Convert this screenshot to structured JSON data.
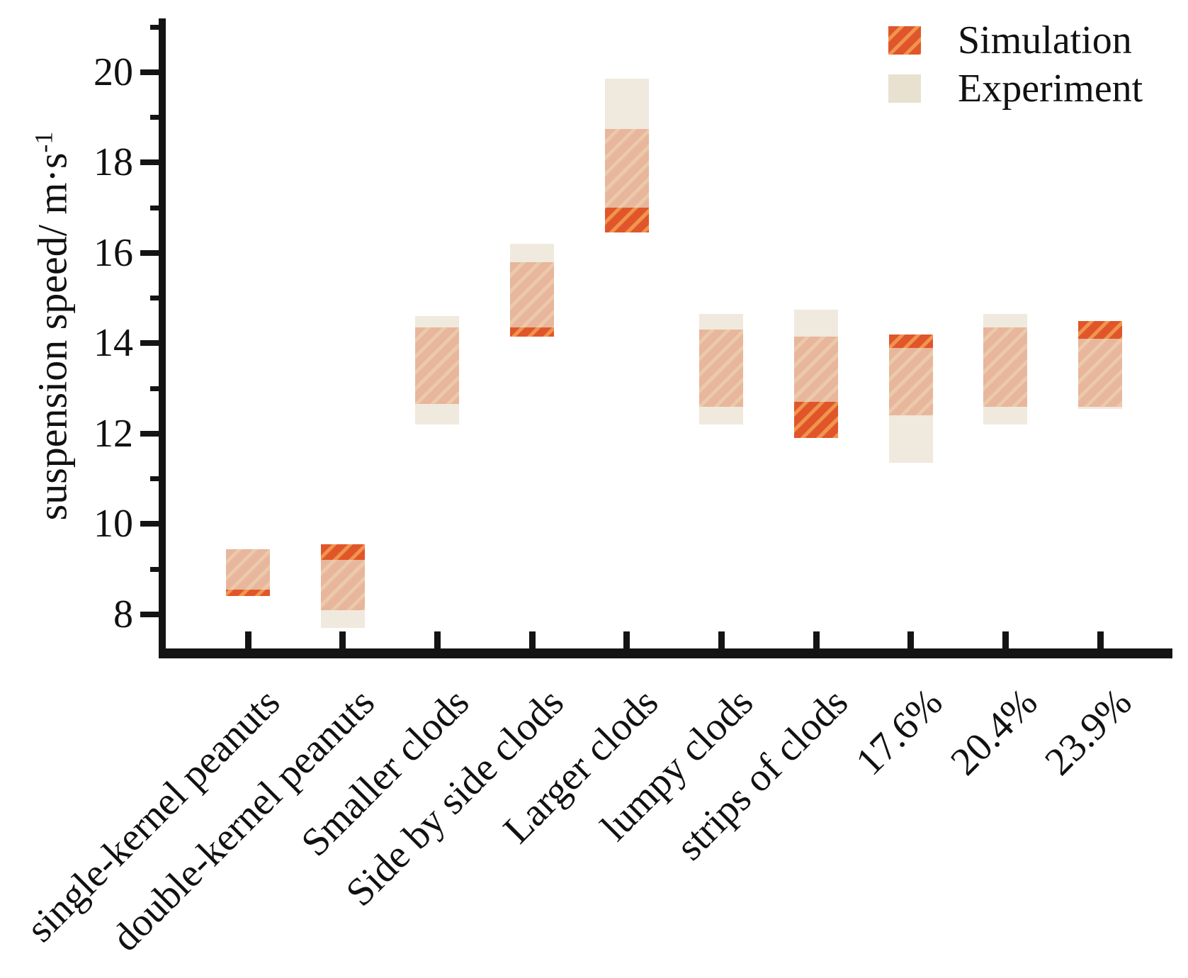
{
  "legend": {
    "items": [
      {
        "label": "Simulation"
      },
      {
        "label": "Experiment"
      }
    ]
  },
  "axes": {
    "ylabel_base": "suspension speed/ m·s",
    "ylabel_sup": "-1"
  },
  "chart_data": {
    "type": "bar",
    "subtype": "floating-range-bars",
    "title": "",
    "xlabel": "",
    "ylabel": "suspension speed/ m·s⁻¹",
    "ylim": [
      7.25,
      21.2
    ],
    "yticks": [
      8,
      10,
      12,
      14,
      16,
      18,
      20
    ],
    "yticks_minor": [
      9,
      11,
      13,
      15,
      17,
      19,
      21
    ],
    "grid": false,
    "legend_position": "top-right",
    "categories": [
      "single-kernel peanuts",
      "double-kernel peanuts",
      "Smaller clods",
      "Side by side clods",
      "Larger clods",
      "lumpy clods",
      "strips of clods",
      "17.6%",
      "20.4%",
      "23.9%"
    ],
    "series": [
      {
        "name": "Simulation",
        "style": "orange-diagonal-hatch",
        "color": "#e0562a",
        "hatch_color": "#f0944e",
        "ranges": [
          [
            8.4,
            9.45
          ],
          [
            8.1,
            9.55
          ],
          [
            12.65,
            14.35
          ],
          [
            14.15,
            15.8
          ],
          [
            16.45,
            18.75
          ],
          [
            12.6,
            14.3
          ],
          [
            11.9,
            14.15
          ],
          [
            12.4,
            14.2
          ],
          [
            12.6,
            14.35
          ],
          [
            12.6,
            14.5
          ]
        ]
      },
      {
        "name": "Experiment",
        "style": "solid-translucent",
        "color": "#e8dfcd",
        "ranges": [
          [
            8.55,
            9.45
          ],
          [
            7.7,
            9.2
          ],
          [
            12.2,
            14.6
          ],
          [
            14.35,
            16.2
          ],
          [
            17.0,
            19.85
          ],
          [
            12.2,
            14.65
          ],
          [
            12.7,
            14.75
          ],
          [
            11.35,
            13.9
          ],
          [
            12.2,
            14.65
          ],
          [
            12.55,
            14.1
          ]
        ]
      }
    ]
  }
}
